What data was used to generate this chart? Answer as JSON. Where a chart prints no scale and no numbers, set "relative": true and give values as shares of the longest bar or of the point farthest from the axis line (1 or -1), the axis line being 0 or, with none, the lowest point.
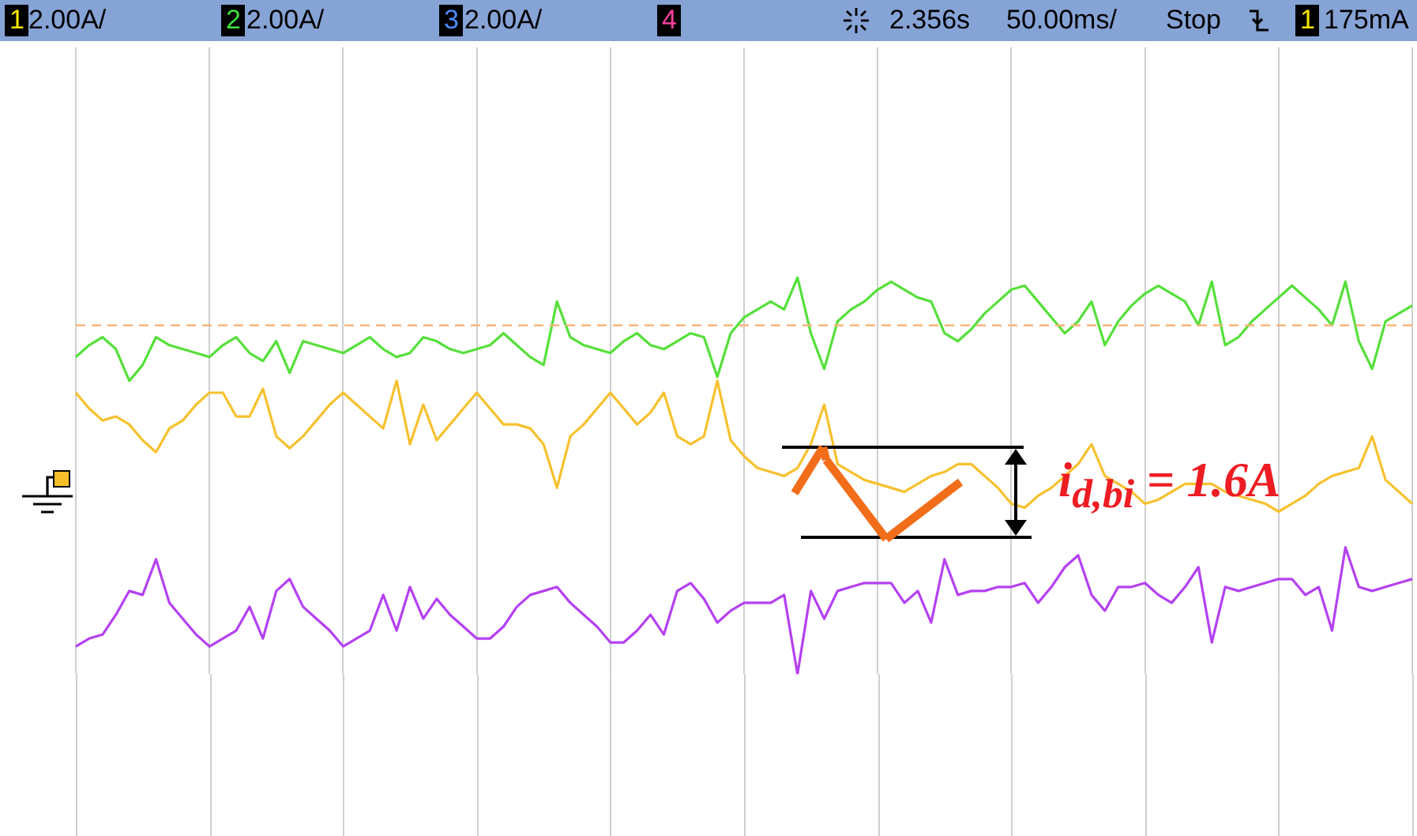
{
  "chart_data": {
    "type": "line",
    "relative": true,
    "legend": false,
    "grid": "x",
    "marker": "none",
    "line_style": "solid",
    "categories": [
      null,
      null,
      null,
      null,
      null,
      null,
      null,
      null,
      null,
      null,
      null,
      null,
      null,
      null,
      null,
      null,
      null,
      null,
      null,
      null,
      null,
      null,
      null,
      null,
      null,
      null,
      null,
      null,
      null,
      null,
      null,
      null,
      null,
      null,
      null,
      null,
      null,
      null,
      null,
      null,
      null,
      null,
      null,
      null,
      null,
      null,
      null,
      null,
      null,
      null,
      null,
      null,
      null,
      null,
      null,
      null,
      null,
      null,
      null,
      null,
      null,
      null,
      null,
      null,
      null,
      null,
      null,
      null,
      null,
      null,
      null,
      null,
      null,
      null,
      null,
      null,
      null,
      null,
      null,
      null,
      null,
      null,
      null,
      null,
      null,
      null,
      null,
      null,
      null,
      null,
      null,
      null,
      null,
      null,
      null,
      null,
      null,
      null,
      null,
      null,
      null
    ],
    "ref_lines": [
      {
        "axis": "y",
        "value": 0.88,
        "label": null,
        "color": "#f7b57a",
        "line_style": "dashed"
      }
    ],
    "annotations": [
      "1",
      "2.00A/",
      "2",
      "2.00A/",
      "3",
      "2.00A/",
      "4",
      "2.356s",
      "50.00ms/",
      "Stop",
      "1",
      "175mA",
      "i$_{d,bi}$ = 1.6A"
    ],
    "series": [
      {
        "color": "#55e03a",
        "values": [
          0.8,
          0.83,
          0.85,
          0.82,
          0.74,
          0.78,
          0.85,
          0.83,
          0.82,
          0.81,
          0.8,
          0.83,
          0.85,
          0.81,
          0.79,
          0.84,
          0.76,
          0.84,
          0.83,
          0.82,
          0.81,
          0.83,
          0.85,
          0.82,
          0.8,
          0.81,
          0.85,
          0.84,
          0.82,
          0.81,
          0.82,
          0.83,
          0.86,
          0.83,
          0.8,
          0.78,
          0.94,
          0.85,
          0.83,
          0.82,
          0.81,
          0.84,
          0.86,
          0.83,
          0.82,
          0.84,
          0.86,
          0.85,
          0.75,
          0.86,
          0.9,
          0.92,
          0.94,
          0.92,
          1.0,
          0.86,
          0.77,
          0.89,
          0.92,
          0.94,
          0.97,
          0.99,
          0.97,
          0.95,
          0.94,
          0.86,
          0.84,
          0.87,
          0.91,
          0.94,
          0.97,
          0.98,
          0.94,
          0.9,
          0.86,
          0.89,
          0.94,
          0.83,
          0.89,
          0.93,
          0.96,
          0.98,
          0.96,
          0.94,
          0.88,
          0.99,
          0.83,
          0.85,
          0.89,
          0.92,
          0.95,
          0.98,
          0.95,
          0.92,
          0.88,
          0.99,
          0.84,
          0.77,
          0.89,
          0.91,
          0.93
        ]
      },
      {
        "color": "#f7c12e",
        "values": [
          0.71,
          0.67,
          0.64,
          0.65,
          0.63,
          0.59,
          0.56,
          0.62,
          0.64,
          0.68,
          0.71,
          0.71,
          0.65,
          0.65,
          0.72,
          0.6,
          0.57,
          0.6,
          0.64,
          0.68,
          0.71,
          0.68,
          0.65,
          0.62,
          0.74,
          0.58,
          0.68,
          0.59,
          0.63,
          0.67,
          0.71,
          0.67,
          0.63,
          0.63,
          0.62,
          0.58,
          0.47,
          0.6,
          0.63,
          0.67,
          0.71,
          0.67,
          0.63,
          0.66,
          0.71,
          0.6,
          0.58,
          0.6,
          0.74,
          0.59,
          0.55,
          0.52,
          0.51,
          0.5,
          0.52,
          0.58,
          0.68,
          0.53,
          0.51,
          0.49,
          0.48,
          0.47,
          0.46,
          0.48,
          0.5,
          0.51,
          0.53,
          0.53,
          0.5,
          0.47,
          0.43,
          0.42,
          0.45,
          0.47,
          0.5,
          0.53,
          0.58,
          0.5,
          0.48,
          0.46,
          0.43,
          0.44,
          0.46,
          0.48,
          0.48,
          0.48,
          0.46,
          0.45,
          0.44,
          0.43,
          0.41,
          0.43,
          0.45,
          0.48,
          0.5,
          0.51,
          0.52,
          0.6,
          0.49,
          0.46,
          0.43
        ]
      },
      {
        "color": "#b441f2",
        "values": [
          0.07,
          0.09,
          0.1,
          0.15,
          0.21,
          0.2,
          0.29,
          0.18,
          0.14,
          0.1,
          0.07,
          0.09,
          0.11,
          0.17,
          0.09,
          0.21,
          0.24,
          0.17,
          0.14,
          0.11,
          0.07,
          0.09,
          0.11,
          0.2,
          0.11,
          0.22,
          0.14,
          0.19,
          0.15,
          0.12,
          0.09,
          0.09,
          0.12,
          0.17,
          0.2,
          0.21,
          0.22,
          0.18,
          0.15,
          0.12,
          0.08,
          0.08,
          0.11,
          0.15,
          0.1,
          0.21,
          0.23,
          0.19,
          0.13,
          0.16,
          0.18,
          0.18,
          0.18,
          0.2,
          0.0,
          0.21,
          0.14,
          0.21,
          0.22,
          0.23,
          0.23,
          0.23,
          0.18,
          0.21,
          0.13,
          0.29,
          0.2,
          0.21,
          0.21,
          0.22,
          0.22,
          0.23,
          0.18,
          0.22,
          0.27,
          0.3,
          0.2,
          0.16,
          0.22,
          0.22,
          0.23,
          0.2,
          0.18,
          0.22,
          0.27,
          0.08,
          0.22,
          0.21,
          0.22,
          0.23,
          0.24,
          0.24,
          0.2,
          0.22,
          0.11,
          0.32,
          0.22,
          0.21,
          0.22,
          0.23,
          0.24
        ]
      }
    ]
  }
}
